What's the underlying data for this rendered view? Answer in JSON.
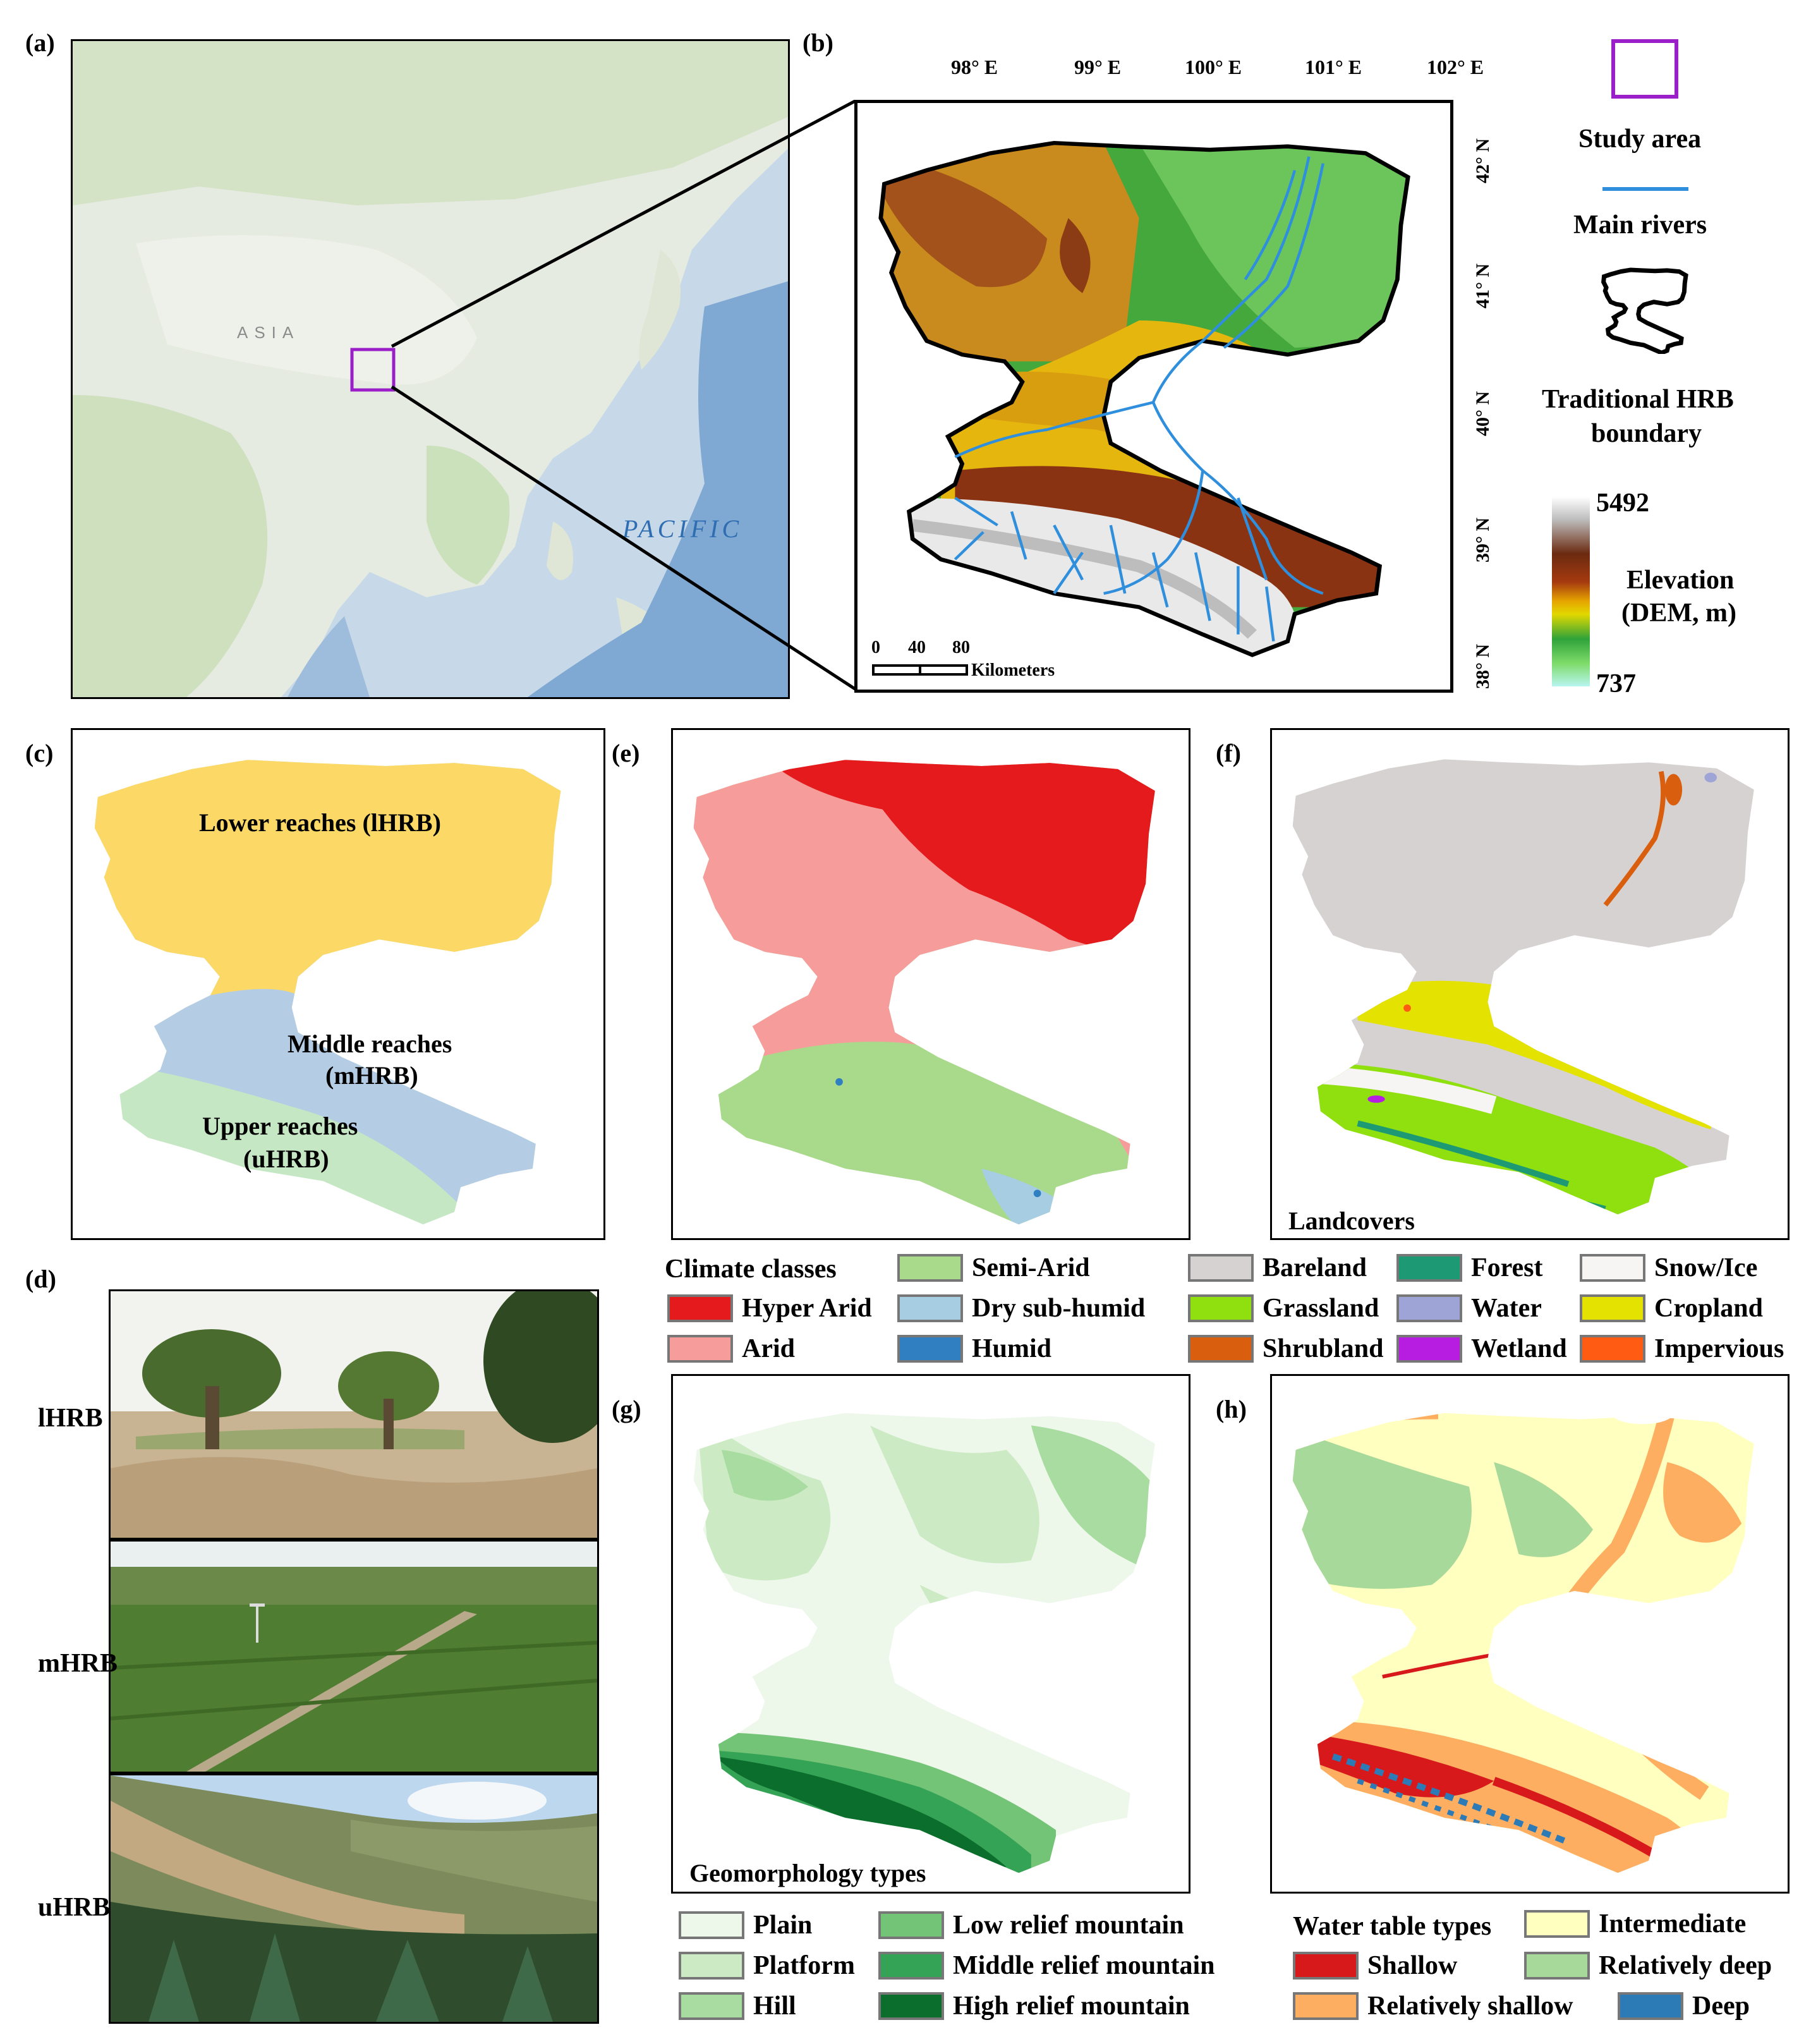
{
  "panels": {
    "a": {
      "label": "(a)",
      "map_labels": {
        "continent": "ASIA",
        "ocean": "PACIFIC"
      }
    },
    "b": {
      "label": "(b)",
      "lon_ticks": [
        "98° E",
        "99° E",
        "100° E",
        "101° E",
        "102° E"
      ],
      "lat_ticks": [
        "42° N",
        "41° N",
        "40° N",
        "39° N",
        "38° N"
      ],
      "scale_bar": {
        "ticks": [
          "0",
          "40",
          "80"
        ],
        "unit": "Kilometers"
      },
      "legend": {
        "study_area": "Study area",
        "main_rivers": "Main rivers",
        "boundary_line1": "Traditional HRB",
        "boundary_line2": "boundary",
        "elev_max": "5492",
        "elev_min": "737",
        "elev_title_line1": "Elevation",
        "elev_title_line2": "(DEM, m)"
      },
      "colors": {
        "study_area": "#9b1fc8",
        "river": "#2f8fdd"
      }
    },
    "c": {
      "label": "(c)",
      "regions": [
        {
          "name": "Lower reaches (lHRB)",
          "color": "#fcd966"
        },
        {
          "name_line1": "Middle reaches",
          "name_line2": "(mHRB)",
          "color": "#b4cce4"
        },
        {
          "name_line1": "Upper reaches",
          "name_line2": "(uHRB)",
          "color": "#c6e7c3"
        }
      ]
    },
    "d": {
      "label": "(d)",
      "photos": [
        "lHRB",
        "mHRB",
        "uHRB"
      ]
    },
    "e": {
      "label": "(e)",
      "legend_title": "Climate classes",
      "classes": [
        {
          "name": "Hyper Arid",
          "color": "#e41a1c"
        },
        {
          "name": "Arid",
          "color": "#f69d9c"
        },
        {
          "name": "Semi-Arid",
          "color": "#a9d98b"
        },
        {
          "name": "Dry sub-humid",
          "color": "#a7cde3"
        },
        {
          "name": "Humid",
          "color": "#2f7fc1"
        }
      ]
    },
    "f": {
      "label": "(f)",
      "caption": "Landcovers",
      "classes": [
        {
          "name": "Bareland",
          "color": "#d7d2d2"
        },
        {
          "name": "Grassland",
          "color": "#8fe00e"
        },
        {
          "name": "Shrubland",
          "color": "#d95f0e"
        },
        {
          "name": "Forest",
          "color": "#1d9a74"
        },
        {
          "name": "Water",
          "color": "#9fa4d6"
        },
        {
          "name": "Wetland",
          "color": "#b71de0"
        },
        {
          "name": "Snow/Ice",
          "color": "#f7f4f4"
        },
        {
          "name": "Cropland",
          "color": "#e3e200"
        },
        {
          "name": "Impervious",
          "color": "#ff5b13"
        }
      ]
    },
    "g": {
      "label": "(g)",
      "caption": "Geomorphology types",
      "classes": [
        {
          "name": "Plain",
          "color": "#edf7ea"
        },
        {
          "name": "Platform",
          "color": "#ccebc5"
        },
        {
          "name": "Hill",
          "color": "#a8dca0"
        },
        {
          "name": "Low relief mountain",
          "color": "#74c477"
        },
        {
          "name": "Middle relief mountain",
          "color": "#35a356"
        },
        {
          "name": "High relief mountain",
          "color": "#0c6e2d"
        }
      ]
    },
    "h": {
      "label": "(h)",
      "legend_title": "Water table types",
      "classes": [
        {
          "name": "Shallow",
          "color": "#d7191c"
        },
        {
          "name": "Relatively shallow",
          "color": "#fdae61"
        },
        {
          "name": "Intermediate",
          "color": "#ffffc0"
        },
        {
          "name": "Relatively deep",
          "color": "#a6d99a"
        },
        {
          "name": "Deep",
          "color": "#2c7bb6"
        }
      ]
    }
  }
}
